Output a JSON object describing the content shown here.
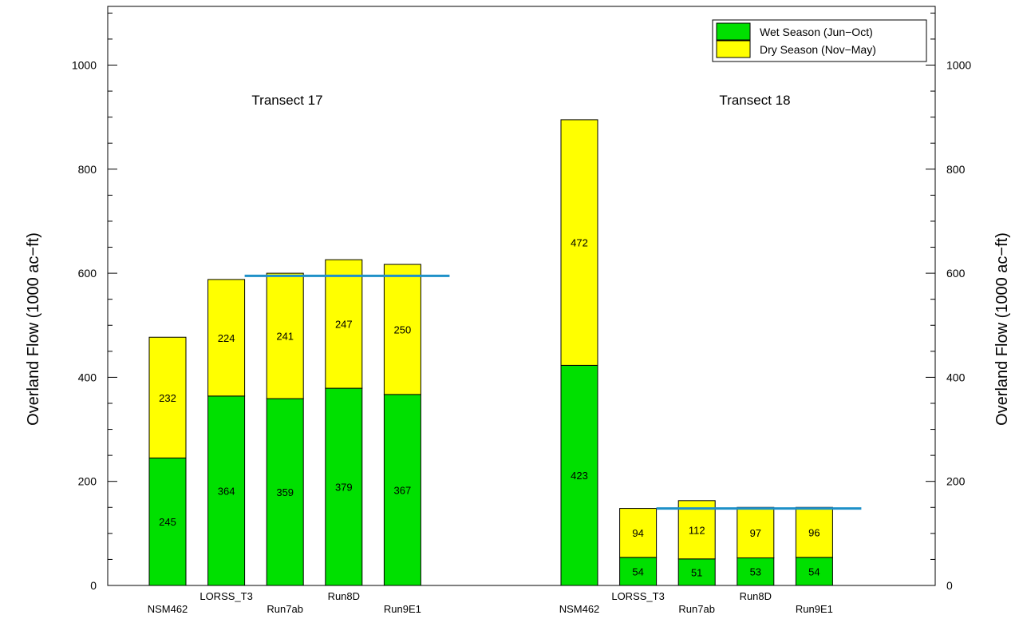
{
  "chart_data": {
    "type": "bar",
    "stacked": true,
    "ylabel": "Overland Flow (1000 ac−ft)",
    "ylim": [
      0,
      1100
    ],
    "yticks": [
      0,
      200,
      400,
      600,
      800,
      1000
    ],
    "legend": {
      "placement": "top-right",
      "entries": [
        {
          "label": "Wet Season (Jun−Oct)",
          "color": "#00e000"
        },
        {
          "label": "Dry Season (Nov−May)",
          "color": "#ffff00"
        }
      ]
    },
    "groups": [
      {
        "title": "Transect 17",
        "categories": [
          "NSM462",
          "LORSS_T3",
          "Run7ab",
          "Run8D",
          "Run9E1"
        ],
        "series": [
          {
            "name": "Wet Season (Jun−Oct)",
            "values": [
              245,
              364,
              359,
              379,
              367
            ]
          },
          {
            "name": "Dry Season (Nov−May)",
            "values": [
              232,
              224,
              241,
              247,
              250
            ]
          }
        ],
        "reference_line": {
          "value": 595,
          "color": "#1e90c8"
        }
      },
      {
        "title": "Transect 18",
        "categories": [
          "NSM462",
          "LORSS_T3",
          "Run7ab",
          "Run8D",
          "Run9E1"
        ],
        "series": [
          {
            "name": "Wet Season (Jun−Oct)",
            "values": [
              423,
              54,
              51,
              53,
              54
            ]
          },
          {
            "name": "Dry Season (Nov−May)",
            "values": [
              472,
              94,
              112,
              97,
              96
            ]
          }
        ],
        "reference_line": {
          "value": 148,
          "color": "#1e90c8"
        }
      }
    ]
  }
}
